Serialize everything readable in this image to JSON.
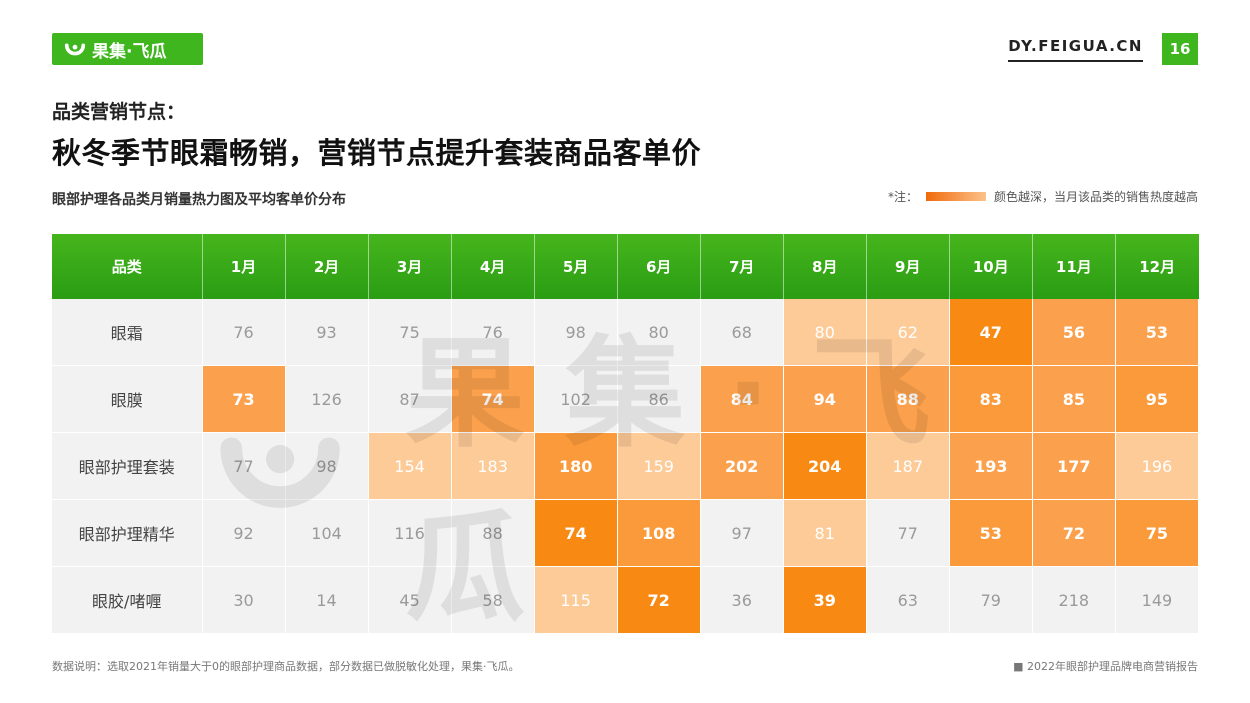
{
  "brand": {
    "logo_text": "果集·飞瓜",
    "site": "DY.FEIGUA.CN",
    "page_number": "16",
    "color": "#3fb51e"
  },
  "header": {
    "subtitle": "品类营销节点：",
    "title": "秋冬季节眼霜畅销，营销节点提升套装商品客单价"
  },
  "chart_label": "眼部护理各品类月销量热力图及平均客单价分布",
  "legend": {
    "prefix": "*注：",
    "text": "颜色越深，当月该品类的销售热度越高",
    "gradient": [
      "#f06a0c",
      "#fcc28a"
    ]
  },
  "watermark": "果集·飞瓜",
  "chart_data": {
    "type": "heatmap",
    "row_header": "品类",
    "months": [
      "1月",
      "2月",
      "3月",
      "4月",
      "5月",
      "6月",
      "7月",
      "8月",
      "9月",
      "10月",
      "11月",
      "12月"
    ],
    "rows": [
      {
        "category": "眼霜",
        "values": [
          76,
          93,
          75,
          76,
          98,
          80,
          68,
          80,
          62,
          47,
          56,
          53
        ],
        "heat": [
          0,
          0,
          0,
          0,
          0,
          0,
          0,
          1,
          1,
          4,
          2,
          2
        ]
      },
      {
        "category": "眼膜",
        "values": [
          73,
          126,
          87,
          74,
          102,
          86,
          84,
          94,
          88,
          83,
          85,
          95
        ],
        "heat": [
          2,
          0,
          0,
          2,
          0,
          0,
          2,
          2,
          2,
          3,
          2,
          3
        ]
      },
      {
        "category": "眼部护理套装",
        "values": [
          77,
          98,
          154,
          183,
          180,
          159,
          202,
          204,
          187,
          193,
          177,
          196
        ],
        "heat": [
          0,
          0,
          1,
          1,
          3,
          1,
          2,
          4,
          1,
          2,
          2,
          1
        ]
      },
      {
        "category": "眼部护理精华",
        "values": [
          92,
          104,
          116,
          88,
          74,
          108,
          97,
          81,
          77,
          53,
          72,
          75
        ],
        "heat": [
          0,
          0,
          0,
          0,
          4,
          3,
          0,
          1,
          0,
          3,
          2,
          3
        ]
      },
      {
        "category": "眼胶/啫喱",
        "values": [
          30,
          14,
          45,
          58,
          115,
          72,
          36,
          39,
          63,
          79,
          218,
          149
        ],
        "heat": [
          0,
          0,
          0,
          0,
          1,
          4,
          0,
          4,
          0,
          0,
          0,
          0
        ]
      }
    ]
  },
  "footer": {
    "left": "数据说明：选取2021年销量大于0的眼部护理商品数据，部分数据已做脱敏化处理，果集·飞瓜。",
    "right": "■ 2022年眼部护理品牌电商营销报告"
  }
}
